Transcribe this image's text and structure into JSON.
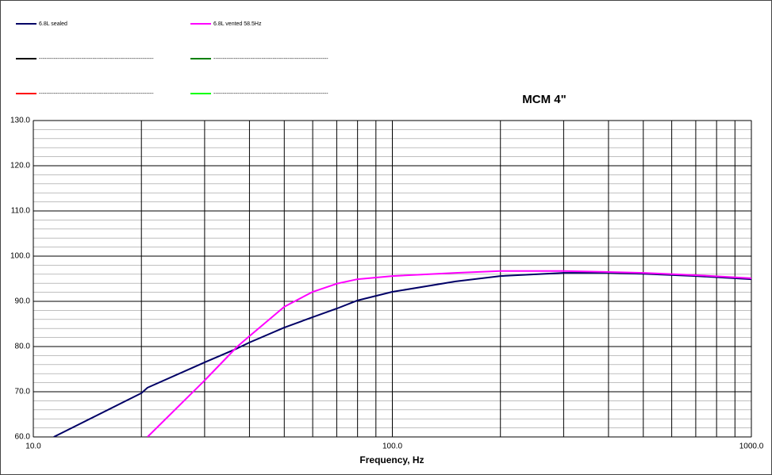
{
  "chart_data": {
    "type": "line",
    "title": "MCM 4\"",
    "xlabel": "Frequency,  Hz",
    "x": [
      11.4,
      20,
      20.8,
      30,
      37,
      40,
      50,
      60,
      70,
      80,
      100,
      150,
      200,
      300,
      400,
      500,
      700,
      1000
    ],
    "series": [
      {
        "name": "6.8L sealed",
        "color": "#000066",
        "values": [
          60,
          69.7,
          70.9,
          76.5,
          79.6,
          80.9,
          84.2,
          86.5,
          88.4,
          90.2,
          92.1,
          94.4,
          95.6,
          96.3,
          96.3,
          96.1,
          95.6,
          94.9
        ]
      },
      {
        "name": "6.8L vented 58.5Hz",
        "color": "#ff00ff",
        "values": [
          null,
          null,
          60,
          72.5,
          80,
          82.3,
          88.8,
          92.1,
          93.9,
          94.9,
          95.6,
          96.3,
          96.7,
          96.7,
          96.5,
          96.3,
          95.8,
          95.1
        ]
      }
    ],
    "legend_placeholders": [
      {
        "name": "--------------------------------------------------------------",
        "color": "#000000"
      },
      {
        "name": "--------------------------------------------------------------",
        "color": "#008000"
      },
      {
        "name": "--------------------------------------------------------------",
        "color": "#ff0000"
      },
      {
        "name": "--------------------------------------------------------------",
        "color": "#00ff00"
      }
    ],
    "log_x": true,
    "xlim": [
      10,
      1000
    ],
    "xticks": [
      {
        "value": 10,
        "label": "10.0"
      },
      {
        "value": 100,
        "label": "100.0"
      },
      {
        "value": 1000,
        "label": "1000.0"
      }
    ],
    "ylim": [
      60,
      130
    ],
    "yticks": [
      {
        "value": 60,
        "label": "60.0"
      },
      {
        "value": 70,
        "label": "70.0"
      },
      {
        "value": 80,
        "label": "80.0"
      },
      {
        "value": 90,
        "label": "90.0"
      },
      {
        "value": 100,
        "label": "100.0"
      },
      {
        "value": 110,
        "label": "110.0"
      },
      {
        "value": 120,
        "label": "120.0"
      },
      {
        "value": 130,
        "label": "130.0"
      }
    ],
    "y_minor_step": 2,
    "grid": true
  }
}
